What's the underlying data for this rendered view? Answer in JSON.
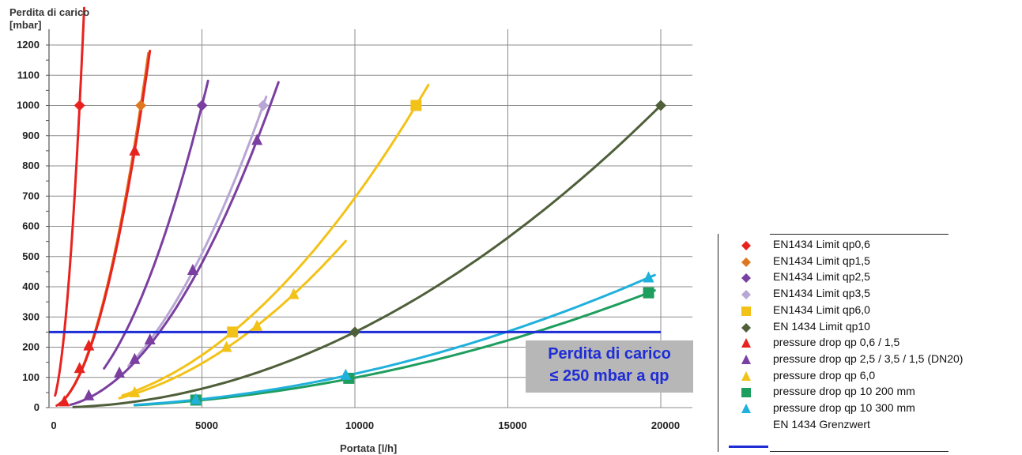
{
  "chart_data": {
    "type": "line",
    "ylabel_lines": [
      "Perdita di carico",
      "[mbar]"
    ],
    "xlabel": "Portata [l/h]",
    "xlim": [
      0,
      20000
    ],
    "ylim": [
      0,
      1200
    ],
    "xticks": [
      0,
      5000,
      10000,
      15000,
      20000
    ],
    "yticks": [
      0,
      100,
      200,
      300,
      400,
      500,
      600,
      700,
      800,
      900,
      1000,
      1100,
      1200
    ],
    "grid": true,
    "reference_line": {
      "y": 250,
      "x_range": [
        0,
        20000
      ],
      "color": "#1f2dd6"
    },
    "annotation": [
      "Perdita di carico",
      "≤ 250 mbar a qp"
    ],
    "series": [
      {
        "name": "EN1434 Limit qp0,6",
        "color": "#e8231f",
        "marker": "diamond",
        "curve_k": 1000,
        "x_range": [
          200,
          1150
        ],
        "markers": [
          {
            "x": 1000,
            "y": 1000
          }
        ]
      },
      {
        "name": "EN1434 Limit qp1,5",
        "color": "#e0761f",
        "marker": "diamond",
        "curve_k": 1000,
        "x_range": [
          500,
          3250
        ],
        "markers": [
          {
            "x": 3000,
            "y": 1000
          }
        ]
      },
      {
        "name": "EN1434 Limit qp2,5",
        "color": "#7a3fa0",
        "marker": "diamond",
        "curve_k": 1000,
        "x_range": [
          1800,
          5200
        ],
        "markers": [
          {
            "x": 5000,
            "y": 1000
          }
        ]
      },
      {
        "name": "EN1434 Limit qp3,5",
        "color": "#b8a6d4",
        "marker": "diamond",
        "curve_k": 1000,
        "x_range": [
          2600,
          7100
        ],
        "markers": [
          {
            "x": 7000,
            "y": 1000
          }
        ]
      },
      {
        "name": "EN1434 Limit qp6,0",
        "color": "#f3c218",
        "marker": "square",
        "curve_k": 1000,
        "x_range": [
          2400,
          12400
        ],
        "markers": [
          {
            "x": 6000,
            "y": 250
          },
          {
            "x": 12000,
            "y": 1000
          }
        ]
      },
      {
        "name": "EN 1434 Limit qp10",
        "color": "#4f5f3a",
        "marker": "diamond",
        "curve_k": 1000,
        "x_range": [
          800,
          20000
        ],
        "markers": [
          {
            "x": 10000,
            "y": 250
          },
          {
            "x": 20000,
            "y": 1000
          }
        ]
      },
      {
        "name": "pressure drop qp 0,6 / 1,5",
        "color": "#e8231f",
        "marker": "triangle",
        "curve_k": 850,
        "x_range": [
          250,
          3300
        ],
        "markers": [
          {
            "x": 500,
            "y": 20
          },
          {
            "x": 1000,
            "y": 130
          },
          {
            "x": 1300,
            "y": 205
          },
          {
            "x": 2800,
            "y": 850
          }
        ]
      },
      {
        "name": "pressure drop qp 2,5 / 3,5 / 1,5 (DN20)",
        "color": "#7a3fa0",
        "marker": "triangle",
        "curve_k": 880,
        "x_range": [
          700,
          7500
        ],
        "markers": [
          {
            "x": 1300,
            "y": 40
          },
          {
            "x": 2300,
            "y": 115
          },
          {
            "x": 2800,
            "y": 160
          },
          {
            "x": 3300,
            "y": 225
          },
          {
            "x": 4700,
            "y": 455
          },
          {
            "x": 6800,
            "y": 885
          }
        ]
      },
      {
        "name": "pressure drop qp 6,0",
        "color": "#f3c218",
        "marker": "triangle",
        "curve_k": 370,
        "x_range": [
          2300,
          9700
        ],
        "markers": [
          {
            "x": 2800,
            "y": 50
          },
          {
            "x": 5800,
            "y": 200
          },
          {
            "x": 6800,
            "y": 270
          },
          {
            "x": 8000,
            "y": 375
          }
        ]
      },
      {
        "name": "pressure drop qp 10 200 mm",
        "color": "#1e9e5e",
        "marker": "square",
        "curve_k": 380,
        "x_range": [
          2800,
          19800
        ],
        "markers": [
          {
            "x": 4800,
            "y": 25
          },
          {
            "x": 9800,
            "y": 97
          },
          {
            "x": 19600,
            "y": 380
          }
        ]
      },
      {
        "name": "pressure drop qp 10 300 mm",
        "color": "#1fb0dc",
        "marker": "triangle",
        "curve_k": 430,
        "x_range": [
          2800,
          19800
        ],
        "markers": [
          {
            "x": 4800,
            "y": 27
          },
          {
            "x": 9700,
            "y": 108
          },
          {
            "x": 19600,
            "y": 430
          }
        ]
      },
      {
        "name": "EN 1434 Grenzwert",
        "color": "#1f2dd6",
        "marker": "line"
      }
    ]
  },
  "legend": {
    "items": [
      {
        "label": "EN1434 Limit qp0,6",
        "color": "#e8231f",
        "marker": "diamond"
      },
      {
        "label": "EN1434 Limit qp1,5",
        "color": "#e0761f",
        "marker": "diamond"
      },
      {
        "label": "EN1434 Limit qp2,5",
        "color": "#7a3fa0",
        "marker": "diamond"
      },
      {
        "label": "EN1434 Limit qp3,5",
        "color": "#b8a6d4",
        "marker": "diamond"
      },
      {
        "label": "EN1434 Limit qp6,0",
        "color": "#f3c218",
        "marker": "square"
      },
      {
        "label": "EN 1434 Limit qp10",
        "color": "#4f5f3a",
        "marker": "diamond"
      },
      {
        "label": "pressure drop qp 0,6 / 1,5",
        "color": "#e8231f",
        "marker": "triangle"
      },
      {
        "label": "pressure drop qp 2,5 / 3,5 / 1,5 (DN20)",
        "color": "#7a3fa0",
        "marker": "triangle"
      },
      {
        "label": "pressure drop qp 6,0",
        "color": "#f3c218",
        "marker": "triangle"
      },
      {
        "label": "pressure drop qp 10 200 mm",
        "color": "#1e9e5e",
        "marker": "square"
      },
      {
        "label": "pressure drop qp 10 300 mm",
        "color": "#1fb0dc",
        "marker": "triangle"
      },
      {
        "label": "EN 1434 Grenzwert",
        "color": "#1f2dd6",
        "marker": "line"
      }
    ]
  }
}
